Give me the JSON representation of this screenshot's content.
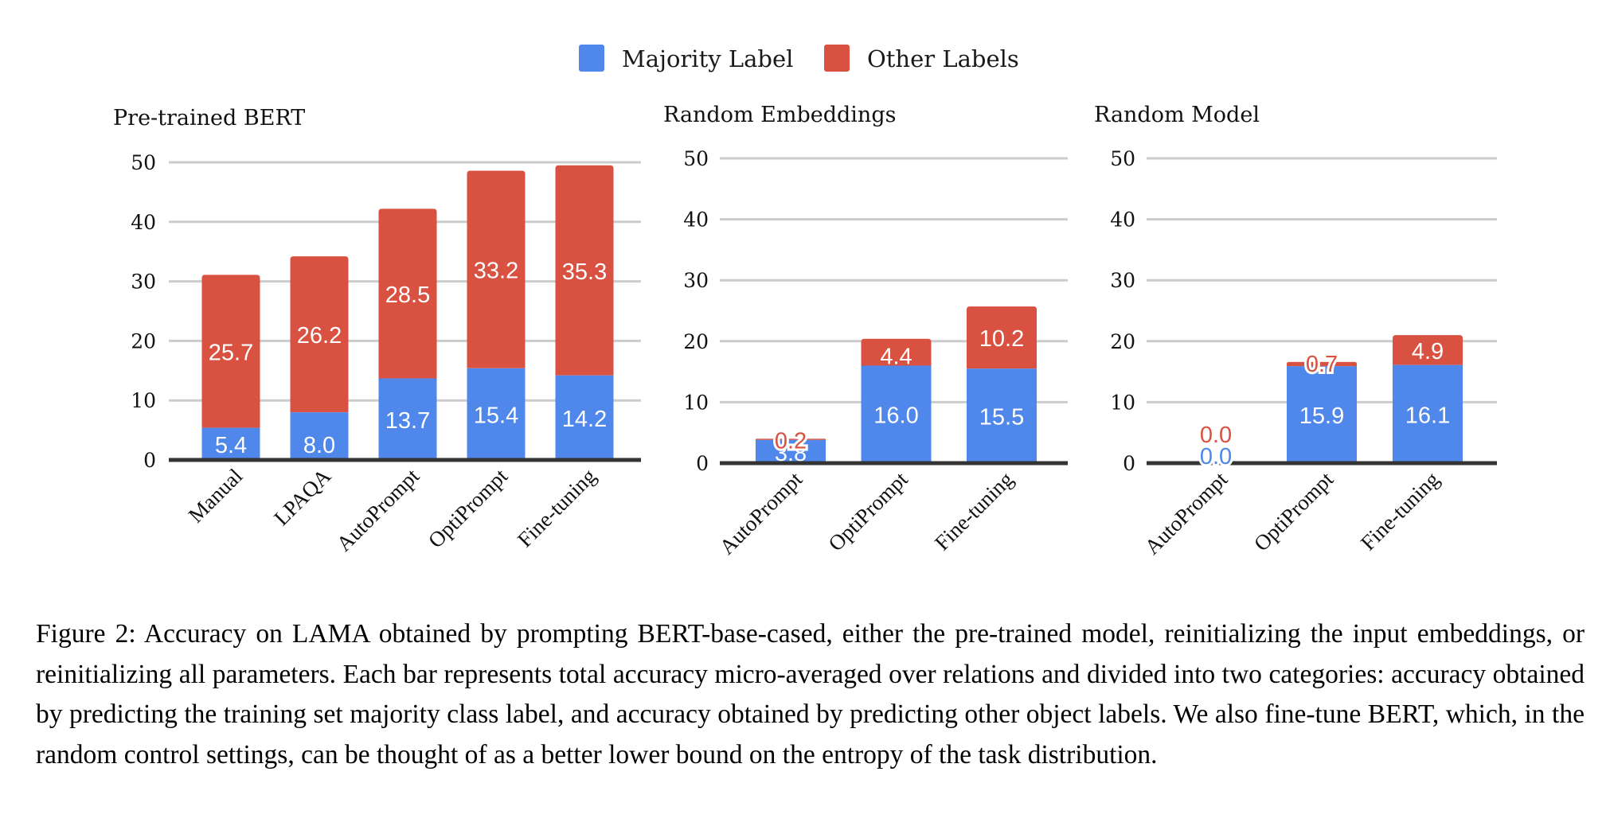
{
  "legend": {
    "items": [
      {
        "label": "Majority Label",
        "color": "#5087EA"
      },
      {
        "label": "Other Labels",
        "color": "#D95140"
      }
    ]
  },
  "chart_data": [
    {
      "type": "bar",
      "stacked": true,
      "title": "Pre-trained BERT",
      "categories": [
        "Manual",
        "LPAQA",
        "AutoPrompt",
        "OptiPrompt",
        "Fine-tuning"
      ],
      "series": [
        {
          "name": "Majority Label",
          "values": [
            5.4,
            8.0,
            13.7,
            15.4,
            14.2
          ]
        },
        {
          "name": "Other Labels",
          "values": [
            25.7,
            26.2,
            28.5,
            33.2,
            35.3
          ]
        }
      ],
      "ylim": [
        0,
        50
      ],
      "yticks": [
        0,
        10,
        20,
        30,
        40,
        50
      ],
      "grid": true,
      "xlabel": "",
      "ylabel": "",
      "legend": "top-center"
    },
    {
      "type": "bar",
      "stacked": true,
      "title": "Random Embeddings",
      "categories": [
        "AutoPrompt",
        "OptiPrompt",
        "Fine-tuning"
      ],
      "series": [
        {
          "name": "Majority Label",
          "values": [
            3.8,
            16.0,
            15.5
          ]
        },
        {
          "name": "Other Labels",
          "values": [
            0.2,
            4.4,
            10.2
          ]
        }
      ],
      "ylim": [
        0,
        50
      ],
      "yticks": [
        0,
        10,
        20,
        30,
        40,
        50
      ],
      "grid": true,
      "xlabel": "",
      "ylabel": "",
      "legend": "top-center"
    },
    {
      "type": "bar",
      "stacked": true,
      "title": "Random Model",
      "categories": [
        "AutoPrompt",
        "OptiPrompt",
        "Fine-tuning"
      ],
      "series": [
        {
          "name": "Majority Label",
          "values": [
            0.0,
            15.9,
            16.1
          ]
        },
        {
          "name": "Other Labels",
          "values": [
            0.0,
            0.7,
            4.9
          ]
        }
      ],
      "ylim": [
        0,
        50
      ],
      "yticks": [
        0,
        10,
        20,
        30,
        40,
        50
      ],
      "grid": true,
      "xlabel": "",
      "ylabel": "",
      "legend": "top-center"
    }
  ],
  "caption": "Figure 2: Accuracy on LAMA obtained by prompting BERT-base-cased, either the pre-trained model, reinitializing the input embeddings, or reinitializing all parameters.  Each bar represents total accuracy micro-averaged over relations and divided into two categories: accuracy obtained by predicting the training set majority class label, and accuracy obtained by predicting other object labels. We also fine-tune BERT, which, in the random control settings, can be thought of as a better lower bound on the entropy of the task distribution."
}
